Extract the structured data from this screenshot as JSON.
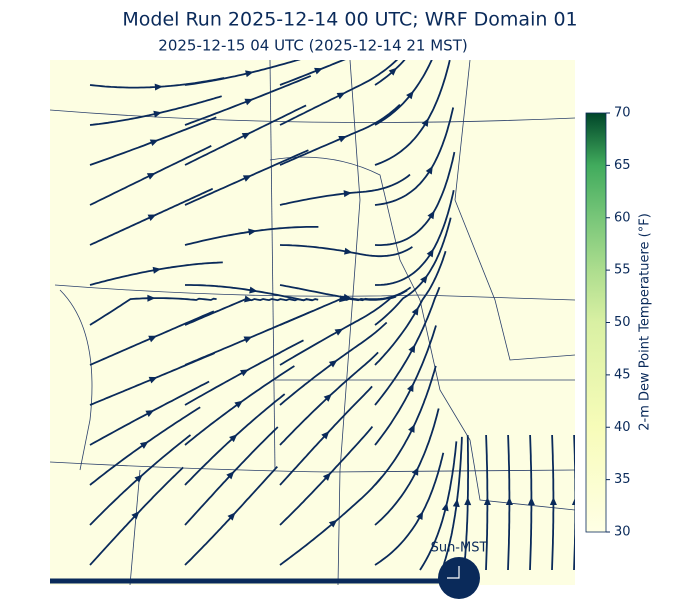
{
  "title": "Model Run 2025-12-14 00 UTC; WRF Domain 01",
  "subtitle": "2025-12-15 04 UTC  (2025-12-14 21 MST)",
  "colorbar": {
    "label": "2-m Dew Point Temperatuere (°F)",
    "lim": [
      30,
      70
    ],
    "ticks": [
      30,
      35,
      40,
      45,
      50,
      55,
      60,
      65,
      70
    ]
  },
  "timeline": {
    "label": "Sun-MST"
  }
}
